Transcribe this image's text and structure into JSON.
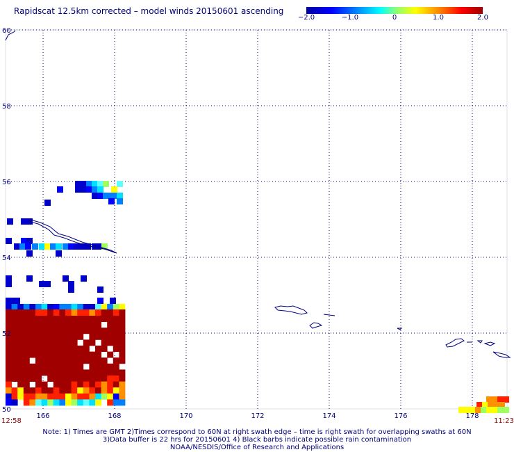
{
  "title": "Rapidscat 12.5km corrected – model winds 20150601 ascending",
  "colorbar": {
    "labels": [
      "−2.0",
      "−1.0",
      "0",
      "1.0",
      "2.0"
    ],
    "values": [
      -2.0,
      -1.0,
      0,
      1.0,
      2.0
    ],
    "min": -2.0,
    "max": 2.0
  },
  "map": {
    "lon_ticks": [
      "166",
      "168",
      "170",
      "172",
      "174",
      "176",
      "178"
    ],
    "lon_values": [
      166,
      168,
      170,
      172,
      174,
      176,
      178
    ],
    "lat_ticks": [
      "60",
      "58",
      "56",
      "54",
      "52",
      "50"
    ],
    "lat_values": [
      60,
      58,
      56,
      54,
      52,
      50
    ],
    "lon_range": [
      164,
      179
    ],
    "lat_range": [
      50,
      60
    ],
    "grid": "dotted"
  },
  "times": {
    "left": "12:58",
    "right": "11:23"
  },
  "notes": {
    "line1": "Note: 1) Times are GMT 2)Times correspond to 60N at right swath edge – time is right swath for overlapping swaths at 60N",
    "line2": "3)Data buffer is 22 hrs for 20150601 4) Black barbs indicate possible rain contamination",
    "line3": "NOAA/NESDIS/Office of Research and Applications"
  },
  "colors": {
    "text": "#00007a",
    "coast": "#000080",
    "grid": "#00007a",
    "time": "#8b0000"
  }
}
